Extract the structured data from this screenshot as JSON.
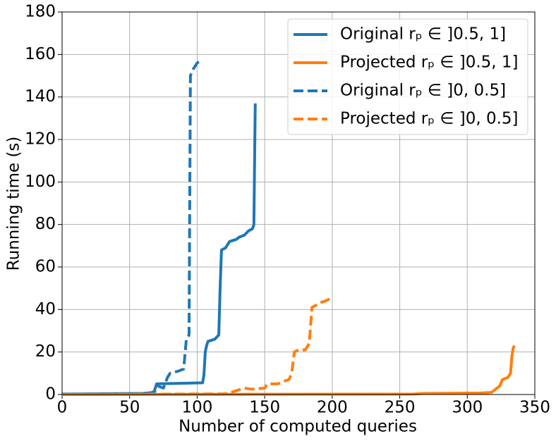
{
  "chart_data": {
    "type": "line",
    "xlabel": "Number of computed queries",
    "ylabel": "Running time (s)",
    "xlim": [
      0,
      350
    ],
    "ylim": [
      0,
      180
    ],
    "xticks": [
      0,
      50,
      100,
      150,
      200,
      250,
      300,
      350
    ],
    "yticks": [
      0,
      20,
      40,
      60,
      80,
      100,
      120,
      140,
      160,
      180
    ],
    "grid": true,
    "legend": "upper right",
    "series": [
      {
        "name": "Original   rₚ ∈ ]0.5, 1]",
        "color": "#1f77b4",
        "linestyle": "solid",
        "x": [
          0,
          60,
          68,
          70,
          90,
          104,
          105,
          106,
          107,
          108,
          113,
          116,
          117,
          118,
          121,
          124,
          129,
          131,
          135,
          138,
          141,
          142,
          143
        ],
        "values": [
          0.2,
          0.5,
          1,
          5,
          5.3,
          5.5,
          9,
          20,
          23,
          25,
          26,
          28,
          50,
          68,
          69,
          72,
          73,
          74,
          75,
          77,
          78,
          80,
          137
        ]
      },
      {
        "name": "Projected rₚ ∈ ]0.5, 1]",
        "color": "#ff7f0e",
        "linestyle": "solid",
        "x": [
          0,
          260,
          268,
          310,
          318,
          322,
          324,
          326,
          330,
          332,
          333,
          334,
          335
        ],
        "values": [
          0,
          0.2,
          0.5,
          0.7,
          1,
          3,
          4,
          7,
          8,
          10,
          18,
          22,
          23
        ]
      },
      {
        "name": "Original  rₚ ∈ ]0, 0.5]",
        "color": "#1f77b4",
        "linestyle": "dashed",
        "x": [
          0,
          65,
          70,
          71,
          75,
          78,
          80,
          86,
          90,
          92,
          94,
          95,
          97,
          100,
          102
        ],
        "values": [
          0,
          0.5,
          2,
          4,
          3,
          8,
          10,
          11,
          12,
          26,
          28,
          150,
          153,
          156,
          157
        ]
      },
      {
        "name": "Projected rₚ ∈ ]0, 0.5]",
        "color": "#ff7f0e",
        "linestyle": "dashed",
        "x": [
          0,
          120,
          125,
          130,
          135,
          140,
          150,
          152,
          160,
          163,
          168,
          170,
          172,
          175,
          180,
          183,
          185,
          188,
          190,
          195,
          198
        ],
        "values": [
          0,
          0.3,
          1,
          2,
          3,
          2.5,
          3,
          5,
          5,
          6,
          7,
          10,
          20,
          21,
          21,
          24,
          41,
          42,
          43,
          44,
          45
        ]
      }
    ]
  }
}
